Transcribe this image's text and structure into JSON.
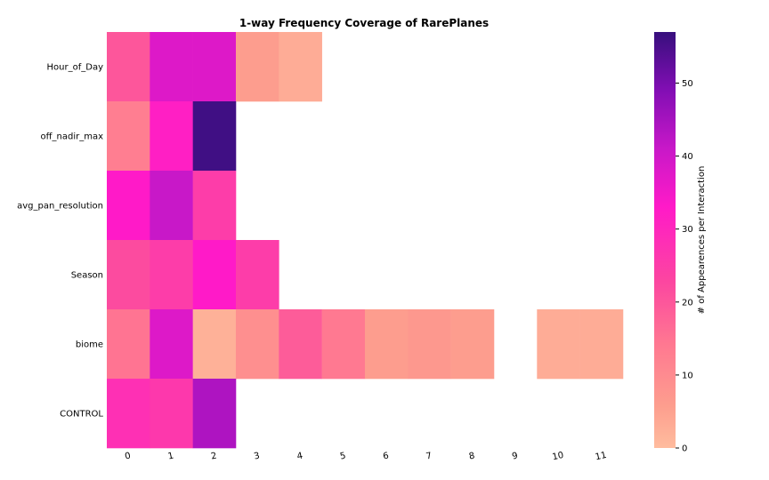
{
  "chart_data": {
    "type": "heatmap",
    "title": "1-way Frequency Coverage of RarePlanes",
    "xlabel": "",
    "ylabel": "",
    "x_categories": [
      "0",
      "1",
      "2",
      "3",
      "4",
      "5",
      "6",
      "7",
      "8",
      "9",
      "10",
      "11"
    ],
    "y_categories": [
      "Hour_of_Day",
      "off_nadir_max",
      "avg_pan_resolution",
      "Season",
      "biome",
      "CONTROL"
    ],
    "values": [
      [
        20,
        38,
        38,
        6,
        3,
        null,
        null,
        null,
        null,
        null,
        null,
        null
      ],
      [
        13,
        32,
        56,
        null,
        null,
        null,
        null,
        null,
        null,
        null,
        null,
        null
      ],
      [
        33,
        41,
        25,
        null,
        null,
        null,
        null,
        null,
        null,
        null,
        null,
        null
      ],
      [
        22,
        25,
        33,
        25,
        null,
        null,
        null,
        null,
        null,
        null,
        null,
        null
      ],
      [
        15,
        38,
        2,
        9,
        19,
        14,
        6,
        7,
        6,
        null,
        3,
        3
      ],
      [
        28,
        26,
        44,
        null,
        null,
        null,
        null,
        null,
        null,
        null,
        null,
        null
      ]
    ],
    "colorbar": {
      "label": "# of Appearences per Interaction",
      "min": 0,
      "max": 57,
      "ticks": [
        0,
        10,
        20,
        30,
        40,
        50
      ],
      "colormap": "RdPu-magenta (peach → pink → magenta → purple → indigo)"
    },
    "grid": false
  }
}
